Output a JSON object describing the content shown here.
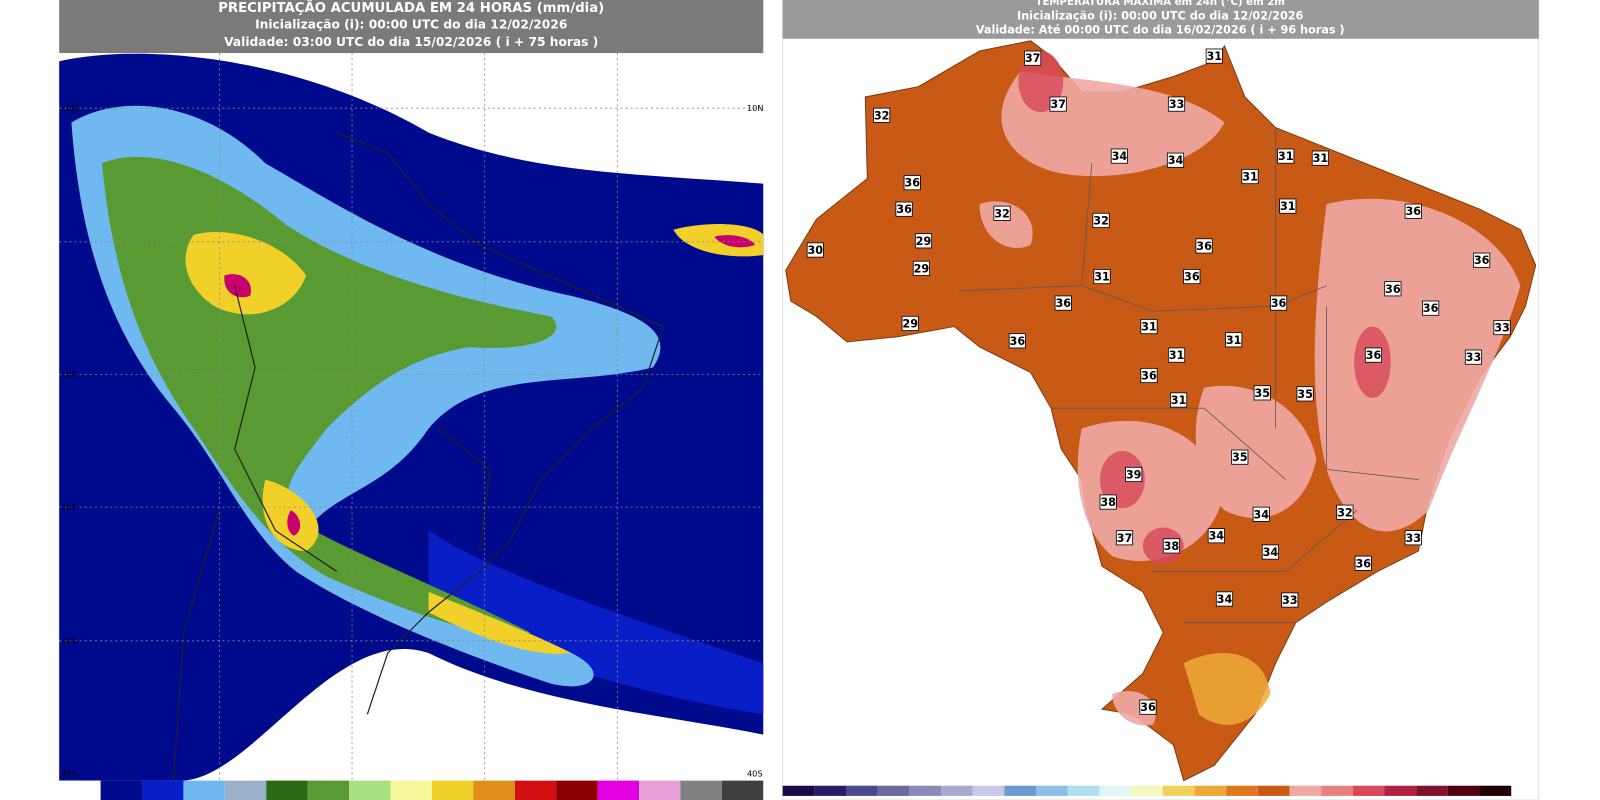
{
  "precipitation_map": {
    "title": "PRECIPITAÇÃO ACUMULADA EM 24 HORAS (mm/dia)",
    "initialization": "Inicialização (i): 00:00 UTC do dia 12/02/2026",
    "validity": "Validade: 03:00 UTC do dia 15/02/2026 ( i + 75 horas )",
    "lat_labels_left": [
      "10N",
      "10S",
      "20S",
      "30S",
      "40S"
    ],
    "lat_labels_right": [
      "10N",
      "40S"
    ]
  },
  "temperature_map": {
    "title": "TEMPERATURA MÁXIMA em 24h (°C) em 2m",
    "initialization": "Inicialização (i): 00:00 UTC do dia 12/02/2026",
    "validity": "Validade: Até 00:00 UTC do dia 16/02/2026 ( i + 96 horas )",
    "point_labels": [
      37,
      31,
      32,
      37,
      33,
      34,
      34,
      31,
      31,
      36,
      31,
      36,
      32,
      32,
      31,
      36,
      29,
      36,
      36,
      30,
      29,
      31,
      36,
      36,
      36,
      36,
      36,
      29,
      31,
      33,
      36,
      31,
      31,
      36,
      33,
      36,
      35,
      35,
      31,
      35,
      39,
      38,
      34,
      32,
      37,
      34,
      38,
      33,
      34,
      36,
      34,
      33,
      36
    ]
  }
}
